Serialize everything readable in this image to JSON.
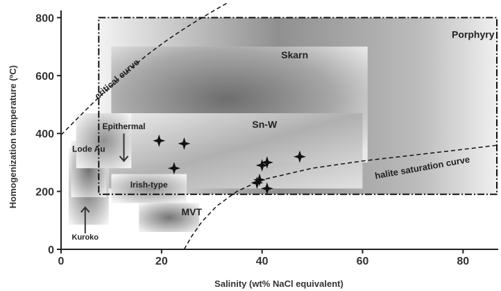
{
  "chart_data": {
    "type": "scatter",
    "xlabel": "Salinity (wt% NaCl equivalent)",
    "ylabel": "Homogenization temperature (ºC)",
    "xlim": [
      0,
      87
    ],
    "ylim": [
      0,
      825
    ],
    "xticks": [
      0,
      20,
      40,
      60,
      80
    ],
    "yticks": [
      0,
      200,
      400,
      600,
      800
    ],
    "grid": false,
    "regions": [
      {
        "name": "Porphyry",
        "x": [
          7.5,
          88
        ],
        "y": [
          190,
          800
        ],
        "style": "dash-dot"
      },
      {
        "name": "Skarn",
        "x": [
          10,
          61
        ],
        "y": [
          300,
          700
        ]
      },
      {
        "name": "Sn-W",
        "x": [
          7,
          60
        ],
        "y": [
          210,
          470
        ]
      },
      {
        "name": "Epithermal",
        "x": [
          3,
          14
        ],
        "y": [
          280,
          470
        ]
      },
      {
        "name": "Lode Au",
        "x": [
          2,
          9
        ],
        "y": [
          180,
          375
        ]
      },
      {
        "name": "Irish-type",
        "x": [
          10,
          25
        ],
        "y": [
          160,
          260
        ]
      },
      {
        "name": "Kuroko",
        "x": [
          1.5,
          9.5
        ],
        "y": [
          85,
          350
        ]
      },
      {
        "name": "MVT",
        "x": [
          15.5,
          27.5
        ],
        "y": [
          60,
          160
        ]
      }
    ],
    "curves": [
      {
        "name": "critical curve"
      },
      {
        "name": "halite saturation curve"
      }
    ],
    "annotations": [
      "Epithermal",
      "Kuroko"
    ],
    "points": [
      {
        "x": 19.5,
        "y": 375
      },
      {
        "x": 24.5,
        "y": 365
      },
      {
        "x": 22.5,
        "y": 280
      },
      {
        "x": 41,
        "y": 300
      },
      {
        "x": 40,
        "y": 290
      },
      {
        "x": 39.5,
        "y": 240
      },
      {
        "x": 39,
        "y": 230
      },
      {
        "x": 41,
        "y": 210
      },
      {
        "x": 47.5,
        "y": 320
      }
    ]
  }
}
